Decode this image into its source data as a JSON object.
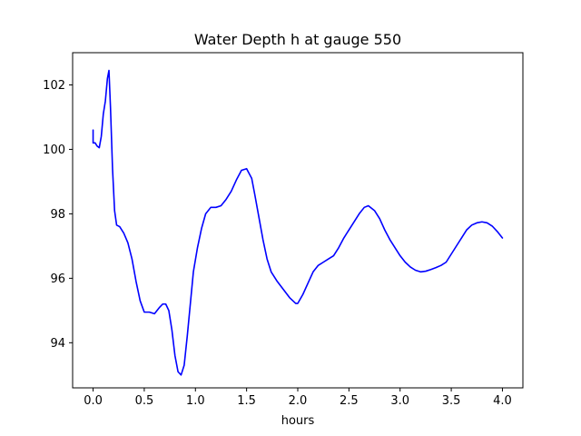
{
  "chart_data": {
    "type": "line",
    "title": "Water Depth h at gauge 550",
    "xlabel": "hours",
    "ylabel": "",
    "xlim": [
      -0.2,
      4.2
    ],
    "ylim": [
      92.6,
      103.0
    ],
    "xticks": [
      0.0,
      0.5,
      1.0,
      1.5,
      2.0,
      2.5,
      3.0,
      3.5,
      4.0
    ],
    "xtick_labels": [
      "0.0",
      "0.5",
      "1.0",
      "1.5",
      "2.0",
      "2.5",
      "3.0",
      "3.5",
      "4.0"
    ],
    "yticks": [
      94,
      96,
      98,
      100,
      102
    ],
    "ytick_labels": [
      "94",
      "96",
      "98",
      "100",
      "102"
    ],
    "grid": false,
    "series": [
      {
        "name": "",
        "color": "#0000ff",
        "x": [
          0.0,
          0.0,
          0.02,
          0.04,
          0.06,
          0.08,
          0.1,
          0.12,
          0.14,
          0.155,
          0.17,
          0.19,
          0.21,
          0.23,
          0.26,
          0.3,
          0.34,
          0.38,
          0.42,
          0.46,
          0.5,
          0.55,
          0.6,
          0.65,
          0.68,
          0.71,
          0.74,
          0.77,
          0.8,
          0.83,
          0.86,
          0.89,
          0.92,
          0.95,
          0.98,
          1.02,
          1.06,
          1.1,
          1.15,
          1.2,
          1.25,
          1.3,
          1.35,
          1.4,
          1.45,
          1.5,
          1.55,
          1.58,
          1.62,
          1.66,
          1.7,
          1.74,
          1.8,
          1.86,
          1.92,
          1.98,
          2.0,
          2.05,
          2.1,
          2.15,
          2.2,
          2.25,
          2.3,
          2.35,
          2.4,
          2.45,
          2.5,
          2.55,
          2.6,
          2.65,
          2.69,
          2.75,
          2.8,
          2.85,
          2.9,
          2.95,
          3.0,
          3.05,
          3.1,
          3.15,
          3.2,
          3.25,
          3.3,
          3.35,
          3.4,
          3.45,
          3.5,
          3.55,
          3.6,
          3.65,
          3.7,
          3.75,
          3.8,
          3.85,
          3.9,
          3.95,
          4.0
        ],
        "y": [
          100.6,
          100.2,
          100.2,
          100.1,
          100.05,
          100.4,
          101.1,
          101.5,
          102.2,
          102.45,
          101.3,
          99.4,
          98.1,
          97.65,
          97.6,
          97.4,
          97.1,
          96.6,
          95.9,
          95.3,
          94.95,
          94.95,
          94.9,
          95.1,
          95.2,
          95.2,
          95.0,
          94.4,
          93.6,
          93.1,
          93.0,
          93.3,
          94.2,
          95.2,
          96.2,
          96.95,
          97.55,
          98.0,
          98.2,
          98.2,
          98.25,
          98.45,
          98.7,
          99.05,
          99.35,
          99.4,
          99.1,
          98.6,
          97.9,
          97.2,
          96.6,
          96.2,
          95.9,
          95.65,
          95.4,
          95.22,
          95.22,
          95.5,
          95.85,
          96.2,
          96.4,
          96.5,
          96.6,
          96.7,
          96.95,
          97.25,
          97.5,
          97.75,
          98.0,
          98.2,
          98.25,
          98.1,
          97.85,
          97.5,
          97.2,
          96.95,
          96.7,
          96.5,
          96.35,
          96.25,
          96.2,
          96.22,
          96.27,
          96.33,
          96.4,
          96.5,
          96.75,
          97.0,
          97.25,
          97.5,
          97.65,
          97.72,
          97.75,
          97.72,
          97.62,
          97.45,
          97.25
        ]
      }
    ]
  }
}
